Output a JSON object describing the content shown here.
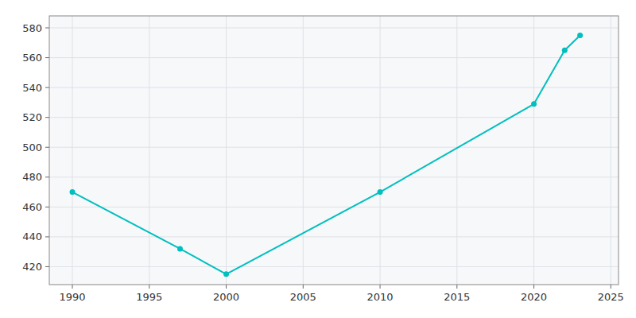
{
  "chart_data": {
    "type": "line",
    "x": [
      1990,
      1997,
      2000,
      2010,
      2020,
      2022,
      2023
    ],
    "values": [
      470,
      432,
      415,
      470,
      529,
      565,
      575
    ],
    "color": "#00BFBF",
    "marker": "circle",
    "xlim": [
      1988.5,
      2025.5
    ],
    "ylim": [
      408,
      588
    ],
    "xticks": [
      1990,
      1995,
      2000,
      2005,
      2010,
      2015,
      2020,
      2025
    ],
    "yticks": [
      420,
      440,
      460,
      480,
      500,
      520,
      540,
      560,
      580
    ],
    "grid": true
  }
}
